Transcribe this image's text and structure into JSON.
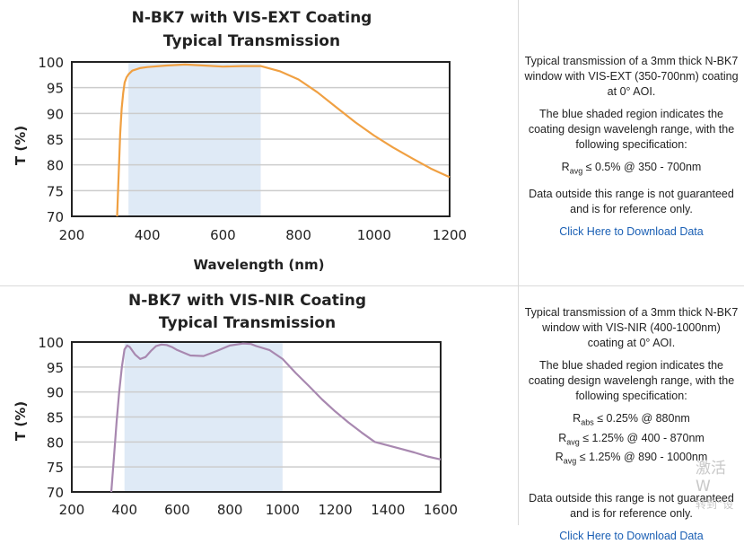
{
  "panels": [
    {
      "chart": {
        "title_line1": "N-BK7 with VIS-EXT Coating",
        "title_line2": "Typical Transmission",
        "ylabel": "T (%)",
        "xlabel": "Wavelength (nm)"
      },
      "description": {
        "intro": "Typical transmission of a 3mm thick N-BK7 window with VIS-EXT (350-700nm) coating at 0° AOI.",
        "shaded_note": "The blue shaded region indicates the coating design wavelengh range, with the following specification:",
        "specs": [
          {
            "sym": "R",
            "sub": "avg",
            "text": " ≤ 0.5% @ 350 - 700nm"
          }
        ],
        "disclaimer": "Data outside this range is not guaranteed and is for reference only.",
        "link": "Click Here to Download Data"
      }
    },
    {
      "chart": {
        "title_line1": "N-BK7 with VIS-NIR Coating",
        "title_line2": "Typical Transmission",
        "ylabel": "T (%)",
        "xlabel": ""
      },
      "description": {
        "intro": "Typical transmission of a 3mm thick N-BK7 window with VIS-NIR (400-1000nm) coating at 0° AOI.",
        "shaded_note": "The blue shaded region indicates the coating design wavelengh range, with the following specification:",
        "specs": [
          {
            "sym": "R",
            "sub": "abs",
            "text": " ≤ 0.25% @ 880nm"
          },
          {
            "sym": "R",
            "sub": "avg",
            "text": " ≤ 1.25% @ 400 - 870nm"
          },
          {
            "sym": "R",
            "sub": "avg",
            "text": " ≤ 1.25% @ 890 - 1000nm"
          }
        ],
        "disclaimer": "Data outside this range is not guaranteed and is for reference only.",
        "link": "Click Here to Download Data"
      }
    }
  ],
  "watermark": {
    "line1": "激活 W",
    "line2": "转到“设"
  },
  "chart_data": [
    {
      "type": "line",
      "title": "N-BK7 with VIS-EXT Coating Typical Transmission",
      "xlabel": "Wavelength (nm)",
      "ylabel": "T (%)",
      "xlim": [
        200,
        1200
      ],
      "ylim": [
        70,
        100
      ],
      "xticks": [
        200,
        400,
        600,
        800,
        1000,
        1200
      ],
      "yticks": [
        70,
        75,
        80,
        85,
        90,
        95,
        100
      ],
      "grid": "horizontal",
      "shaded_range": [
        350,
        700
      ],
      "shaded_color": "#dfeaf6",
      "line_color": "#f0a042",
      "series": [
        {
          "x": [
            320,
            324,
            328,
            332,
            336,
            340,
            345,
            350,
            360,
            380,
            400,
            450,
            500,
            550,
            600,
            650,
            700,
            750,
            800,
            850,
            900,
            950,
            1000,
            1050,
            1100,
            1150,
            1200
          ],
          "y": [
            70,
            78,
            86,
            91,
            94,
            96,
            97,
            97.6,
            98.3,
            98.8,
            99,
            99.3,
            99.5,
            99.3,
            99.1,
            99.2,
            99.2,
            98.2,
            96.6,
            94.1,
            91.2,
            88.3,
            85.7,
            83.4,
            81.3,
            79.3,
            77.6
          ]
        }
      ]
    },
    {
      "type": "line",
      "title": "N-BK7 with VIS-NIR Coating Typical Transmission",
      "xlabel": "",
      "ylabel": "T (%)",
      "xlim": [
        200,
        1600
      ],
      "ylim": [
        70,
        100
      ],
      "xticks": [
        200,
        400,
        600,
        800,
        1000,
        1200,
        1400,
        1600
      ],
      "yticks": [
        70,
        75,
        80,
        85,
        90,
        95,
        100
      ],
      "grid": "horizontal",
      "shaded_range": [
        400,
        1000
      ],
      "shaded_color": "#dfeaf6",
      "line_color": "#a888b0",
      "series": [
        {
          "x": [
            350,
            360,
            370,
            380,
            390,
            400,
            410,
            420,
            440,
            460,
            480,
            500,
            520,
            540,
            560,
            580,
            600,
            650,
            700,
            750,
            800,
            850,
            880,
            900,
            950,
            1000,
            1050,
            1100,
            1150,
            1200,
            1250,
            1300,
            1350,
            1400,
            1450,
            1500,
            1550,
            1600
          ],
          "y": [
            70,
            77,
            84,
            90,
            95,
            98.5,
            99.3,
            99,
            97.5,
            96.6,
            97,
            98.2,
            99.2,
            99.5,
            99.4,
            99,
            98.4,
            97.3,
            97.2,
            98.2,
            99.3,
            99.7,
            99.6,
            99.2,
            98.4,
            96.6,
            93.8,
            91.2,
            88.5,
            86.1,
            83.9,
            81.9,
            80,
            79.3,
            78.6,
            77.9,
            77.1,
            76.5
          ]
        }
      ]
    }
  ]
}
